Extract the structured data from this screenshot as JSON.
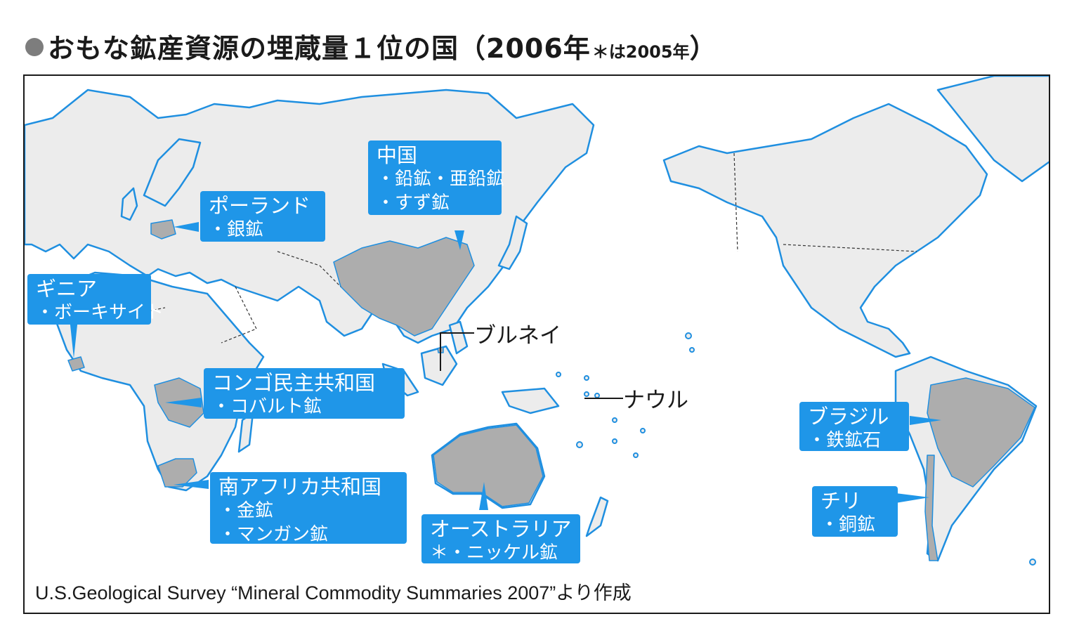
{
  "title": {
    "main": "おもな鉱産資源の埋蔵量１位の国（2006年",
    "note": "＊は2005年",
    "close": "）"
  },
  "colors": {
    "land": "#ececec",
    "coast": "#1f8fe0",
    "highlight": "#adadad",
    "label_bg": "#1f96e8",
    "label_text": "#ffffff"
  },
  "labels": {
    "china": {
      "country": "中国",
      "minerals": [
        "・鉛鉱・亜鉛鉱",
        "・すず鉱"
      ]
    },
    "poland": {
      "country": "ポーランド",
      "minerals": [
        "・銀鉱"
      ]
    },
    "guinea": {
      "country": "ギニア",
      "minerals": [
        "・ボーキサイト"
      ]
    },
    "congo": {
      "country": "コンゴ民主共和国",
      "minerals": [
        "・コバルト鉱"
      ]
    },
    "south_africa": {
      "country": "南アフリカ共和国",
      "minerals": [
        "・金鉱",
        "・マンガン鉱"
      ]
    },
    "australia": {
      "country": "オーストラリア",
      "minerals": [
        "＊・ニッケル鉱"
      ]
    },
    "brazil": {
      "country": "ブラジル",
      "minerals": [
        "・鉄鉱石"
      ]
    },
    "chile": {
      "country": "チリ",
      "minerals": [
        "・銅鉱"
      ]
    }
  },
  "callouts": {
    "brunei": "ブルネイ",
    "nauru": "ナウル"
  },
  "source": "U.S.Geological Survey “Mineral Commodity Summaries 2007”より作成"
}
